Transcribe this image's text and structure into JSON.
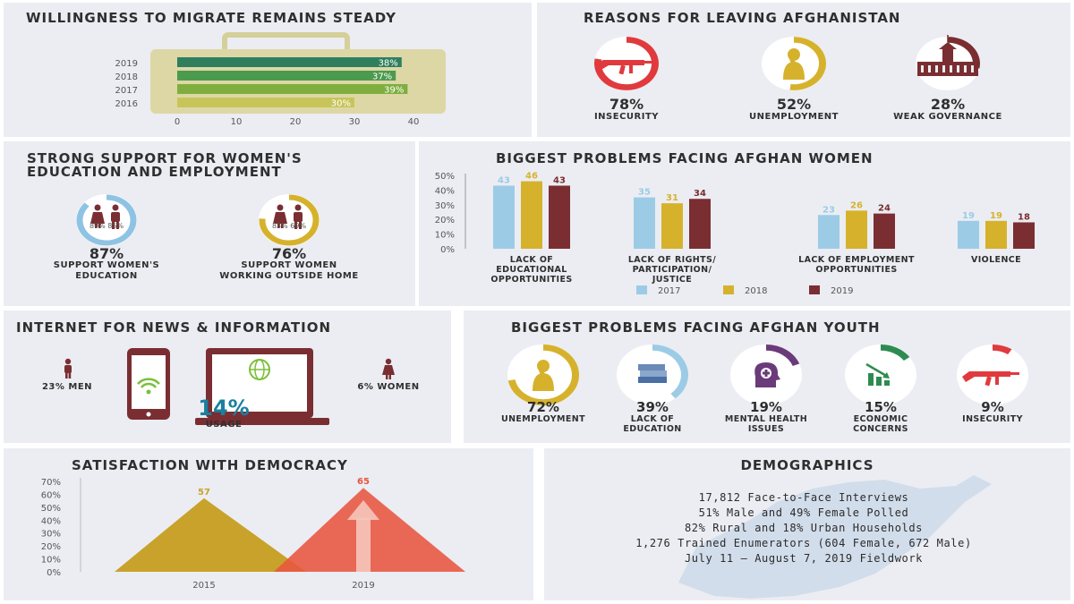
{
  "colors": {
    "green_dark": "#2f7f5e",
    "green_mid": "#6fa83e",
    "olive": "#b4b94a",
    "gold": "#d6b22c",
    "light_blue": "#9ccbe6",
    "maroon": "#7a2e31",
    "red": "#e23b3b",
    "teal": "#1b7fa0",
    "panel": "#ebedf2"
  },
  "migrate": {
    "title": "WILLINGNESS TO MIGRATE REMAINS STEADY",
    "chart_data": {
      "type": "bar",
      "orientation": "horizontal",
      "categories": [
        "2019",
        "2018",
        "2017",
        "2016"
      ],
      "values": [
        38,
        37,
        39,
        30
      ],
      "value_labels": [
        "38%",
        "37%",
        "39%",
        "30%"
      ],
      "xticks": [
        "0",
        "10",
        "20",
        "30",
        "40"
      ],
      "xlim": [
        0,
        40
      ]
    }
  },
  "reasons": {
    "title": "REASONS FOR LEAVING AFGHANISTAN",
    "items": [
      {
        "pct": "78%",
        "label": "INSECURITY",
        "value": 78,
        "icon": "rifle-icon",
        "color": "#e03a3e"
      },
      {
        "pct": "52%",
        "label": "UNEMPLOYMENT",
        "value": 52,
        "icon": "worried-person-icon",
        "color": "#d6b22c"
      },
      {
        "pct": "28%",
        "label": "WEAK GOVERNANCE",
        "value": 28,
        "icon": "parliament-building-icon",
        "color": "#7a2e31"
      }
    ]
  },
  "women_support": {
    "title_line1": "STRONG SUPPORT FOR WOMEN'S",
    "title_line2": "EDUCATION AND EMPLOYMENT",
    "items": [
      {
        "pct": "87%",
        "label1": "SUPPORT WOMEN'S",
        "label2": "EDUCATION",
        "sub": "89% 85%",
        "value": 87,
        "color": "#8fc3e3",
        "icon": "man-woman-icon"
      },
      {
        "pct": "76%",
        "label1": "SUPPORT WOMEN",
        "label2": "WORKING OUTSIDE HOME",
        "sub": "83% 69%",
        "value": 76,
        "color": "#d6b22c",
        "icon": "man-woman-icon"
      }
    ]
  },
  "women_problems": {
    "title": "BIGGEST PROBLEMS FACING AFGHAN WOMEN",
    "chart_data": {
      "type": "bar",
      "categories": [
        {
          "lines": [
            "LACK OF",
            "EDUCATIONAL",
            "OPPORTUNITIES"
          ]
        },
        {
          "lines": [
            "LACK OF RIGHTS/",
            "PARTICIPATION/",
            "JUSTICE"
          ]
        },
        {
          "lines": [
            "LACK OF EMPLOYMENT",
            "OPPORTUNITIES"
          ]
        },
        {
          "lines": [
            "VIOLENCE"
          ]
        }
      ],
      "series": [
        {
          "name": "2017",
          "values": [
            43,
            35,
            23,
            19
          ],
          "color": "#9ccbe6"
        },
        {
          "name": "2018",
          "values": [
            46,
            31,
            26,
            19
          ],
          "color": "#d6b22c"
        },
        {
          "name": "2019",
          "values": [
            43,
            34,
            24,
            18
          ],
          "color": "#7a2e31"
        }
      ],
      "yticks": [
        "50%",
        "40%",
        "30%",
        "20%",
        "10%",
        "0%"
      ],
      "ylim": [
        0,
        50
      ]
    }
  },
  "internet": {
    "title": "INTERNET FOR NEWS & INFORMATION",
    "men": "23% MEN",
    "women": "6% WOMEN",
    "usage_pct": "14%",
    "usage_label": "USAGE"
  },
  "youth": {
    "title": "BIGGEST PROBLEMS FACING AFGHAN YOUTH",
    "items": [
      {
        "pct": "72%",
        "lines": [
          "UNEMPLOYMENT"
        ],
        "value": 72,
        "color": "#d6b22c",
        "icon": "worried-person-icon"
      },
      {
        "pct": "39%",
        "lines": [
          "LACK OF",
          "EDUCATION"
        ],
        "value": 39,
        "color": "#9ccbe6",
        "icon": "books-icon"
      },
      {
        "pct": "19%",
        "lines": [
          "MENTAL HEALTH",
          "ISSUES"
        ],
        "value": 19,
        "color": "#6b3a7a",
        "icon": "head-medical-icon"
      },
      {
        "pct": "15%",
        "lines": [
          "ECONOMIC",
          "CONCERNS"
        ],
        "value": 15,
        "color": "#2e8b4f",
        "icon": "declining-chart-icon"
      },
      {
        "pct": "9%",
        "lines": [
          "INSECURITY"
        ],
        "value": 9,
        "color": "#e03a3e",
        "icon": "rifle-icon"
      }
    ]
  },
  "democracy": {
    "title": "SATISFACTION WITH DEMOCRACY",
    "chart_data": {
      "type": "area",
      "categories": [
        "2015",
        "2019"
      ],
      "values": [
        57,
        65
      ],
      "value_labels": [
        "57",
        "65"
      ],
      "colors": [
        "#c8a22a",
        "#e8553f"
      ],
      "yticks": [
        "70%",
        "60%",
        "50%",
        "40%",
        "30%",
        "20%",
        "10%",
        "0%"
      ],
      "ylim": [
        0,
        70
      ]
    }
  },
  "demographics": {
    "title": "DEMOGRAPHICS",
    "lines": [
      "17,812 Face-to-Face Interviews",
      "51% Male and 49% Female Polled",
      "82% Rural and 18% Urban Households",
      "1,276 Trained Enumerators (604 Female, 672 Male)",
      "July 11 — August 7, 2019 Fieldwork"
    ]
  }
}
